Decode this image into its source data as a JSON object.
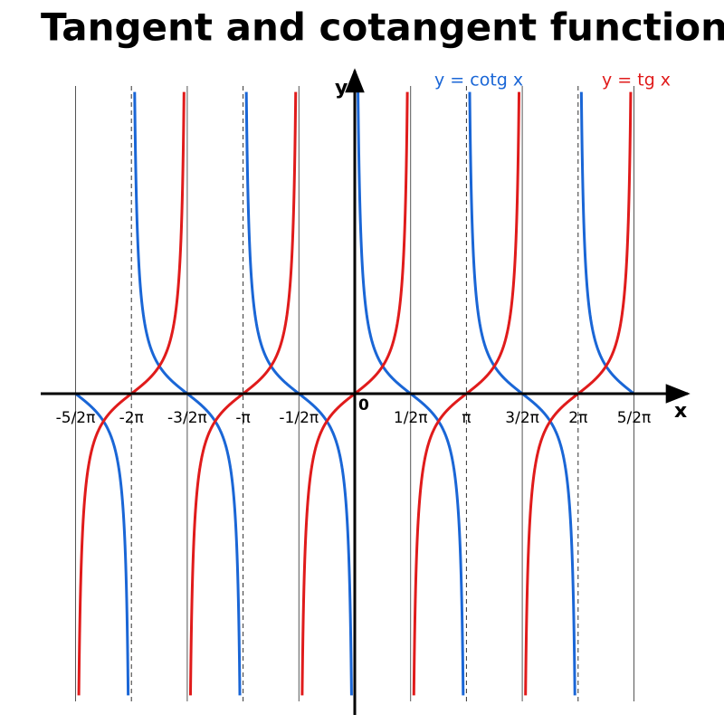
{
  "chart_data": {
    "type": "function",
    "title": "Tangent and cotangent function",
    "x_label": "x",
    "y_label": "y",
    "origin_label": "0",
    "xlim": [
      -2.5,
      2.5
    ],
    "ylim": [
      -11,
      11
    ],
    "xticks": [
      {
        "value": -2.5,
        "label": "-5/2π"
      },
      {
        "value": -2,
        "label": "-2π"
      },
      {
        "value": -1.5,
        "label": "-3/2π"
      },
      {
        "value": -1,
        "label": "-π"
      },
      {
        "value": -0.5,
        "label": "-1/2π"
      },
      {
        "value": 0.5,
        "label": "1/2π"
      },
      {
        "value": 1,
        "label": "π"
      },
      {
        "value": 1.5,
        "label": "3/2π"
      },
      {
        "value": 2,
        "label": "2π"
      },
      {
        "value": 2.5,
        "label": "5/2π"
      }
    ],
    "series": [
      {
        "name": "y = cotg x",
        "color": "#1a66d6",
        "function": "cot"
      },
      {
        "name": "y = tg x",
        "color": "#e01b1b",
        "function": "tan"
      }
    ]
  }
}
